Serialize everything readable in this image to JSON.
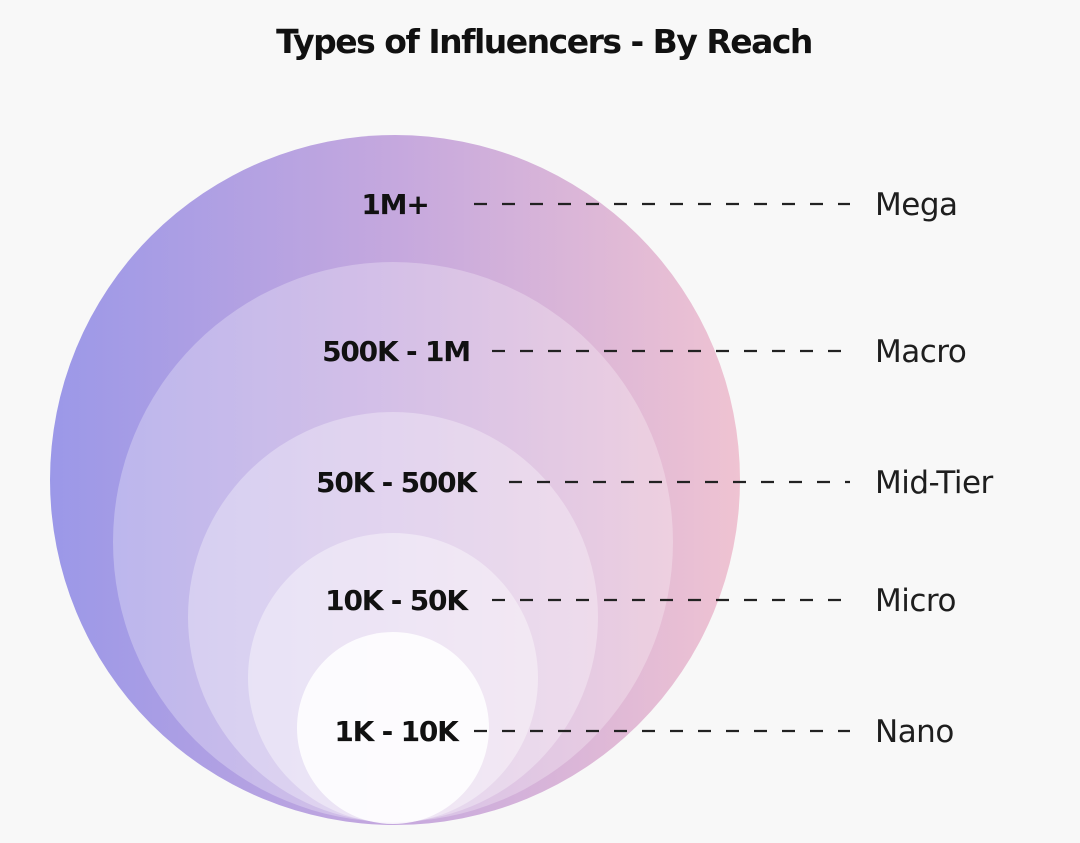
{
  "title": "Types of Influencers - By Reach",
  "colors": {
    "background": "#f8f8f8",
    "gradient_left": "#9b98e8",
    "gradient_mid": "#c5a8de",
    "gradient_right": "#efc3d2",
    "text": "#111111"
  },
  "tiers": [
    {
      "range": "1M+",
      "name": "Mega"
    },
    {
      "range": "500K - 1M",
      "name": "Macro"
    },
    {
      "range": "50K - 500K",
      "name": "Mid-Tier"
    },
    {
      "range": "10K - 50K",
      "name": "Micro"
    },
    {
      "range": "1K - 10K",
      "name": "Nano"
    }
  ]
}
